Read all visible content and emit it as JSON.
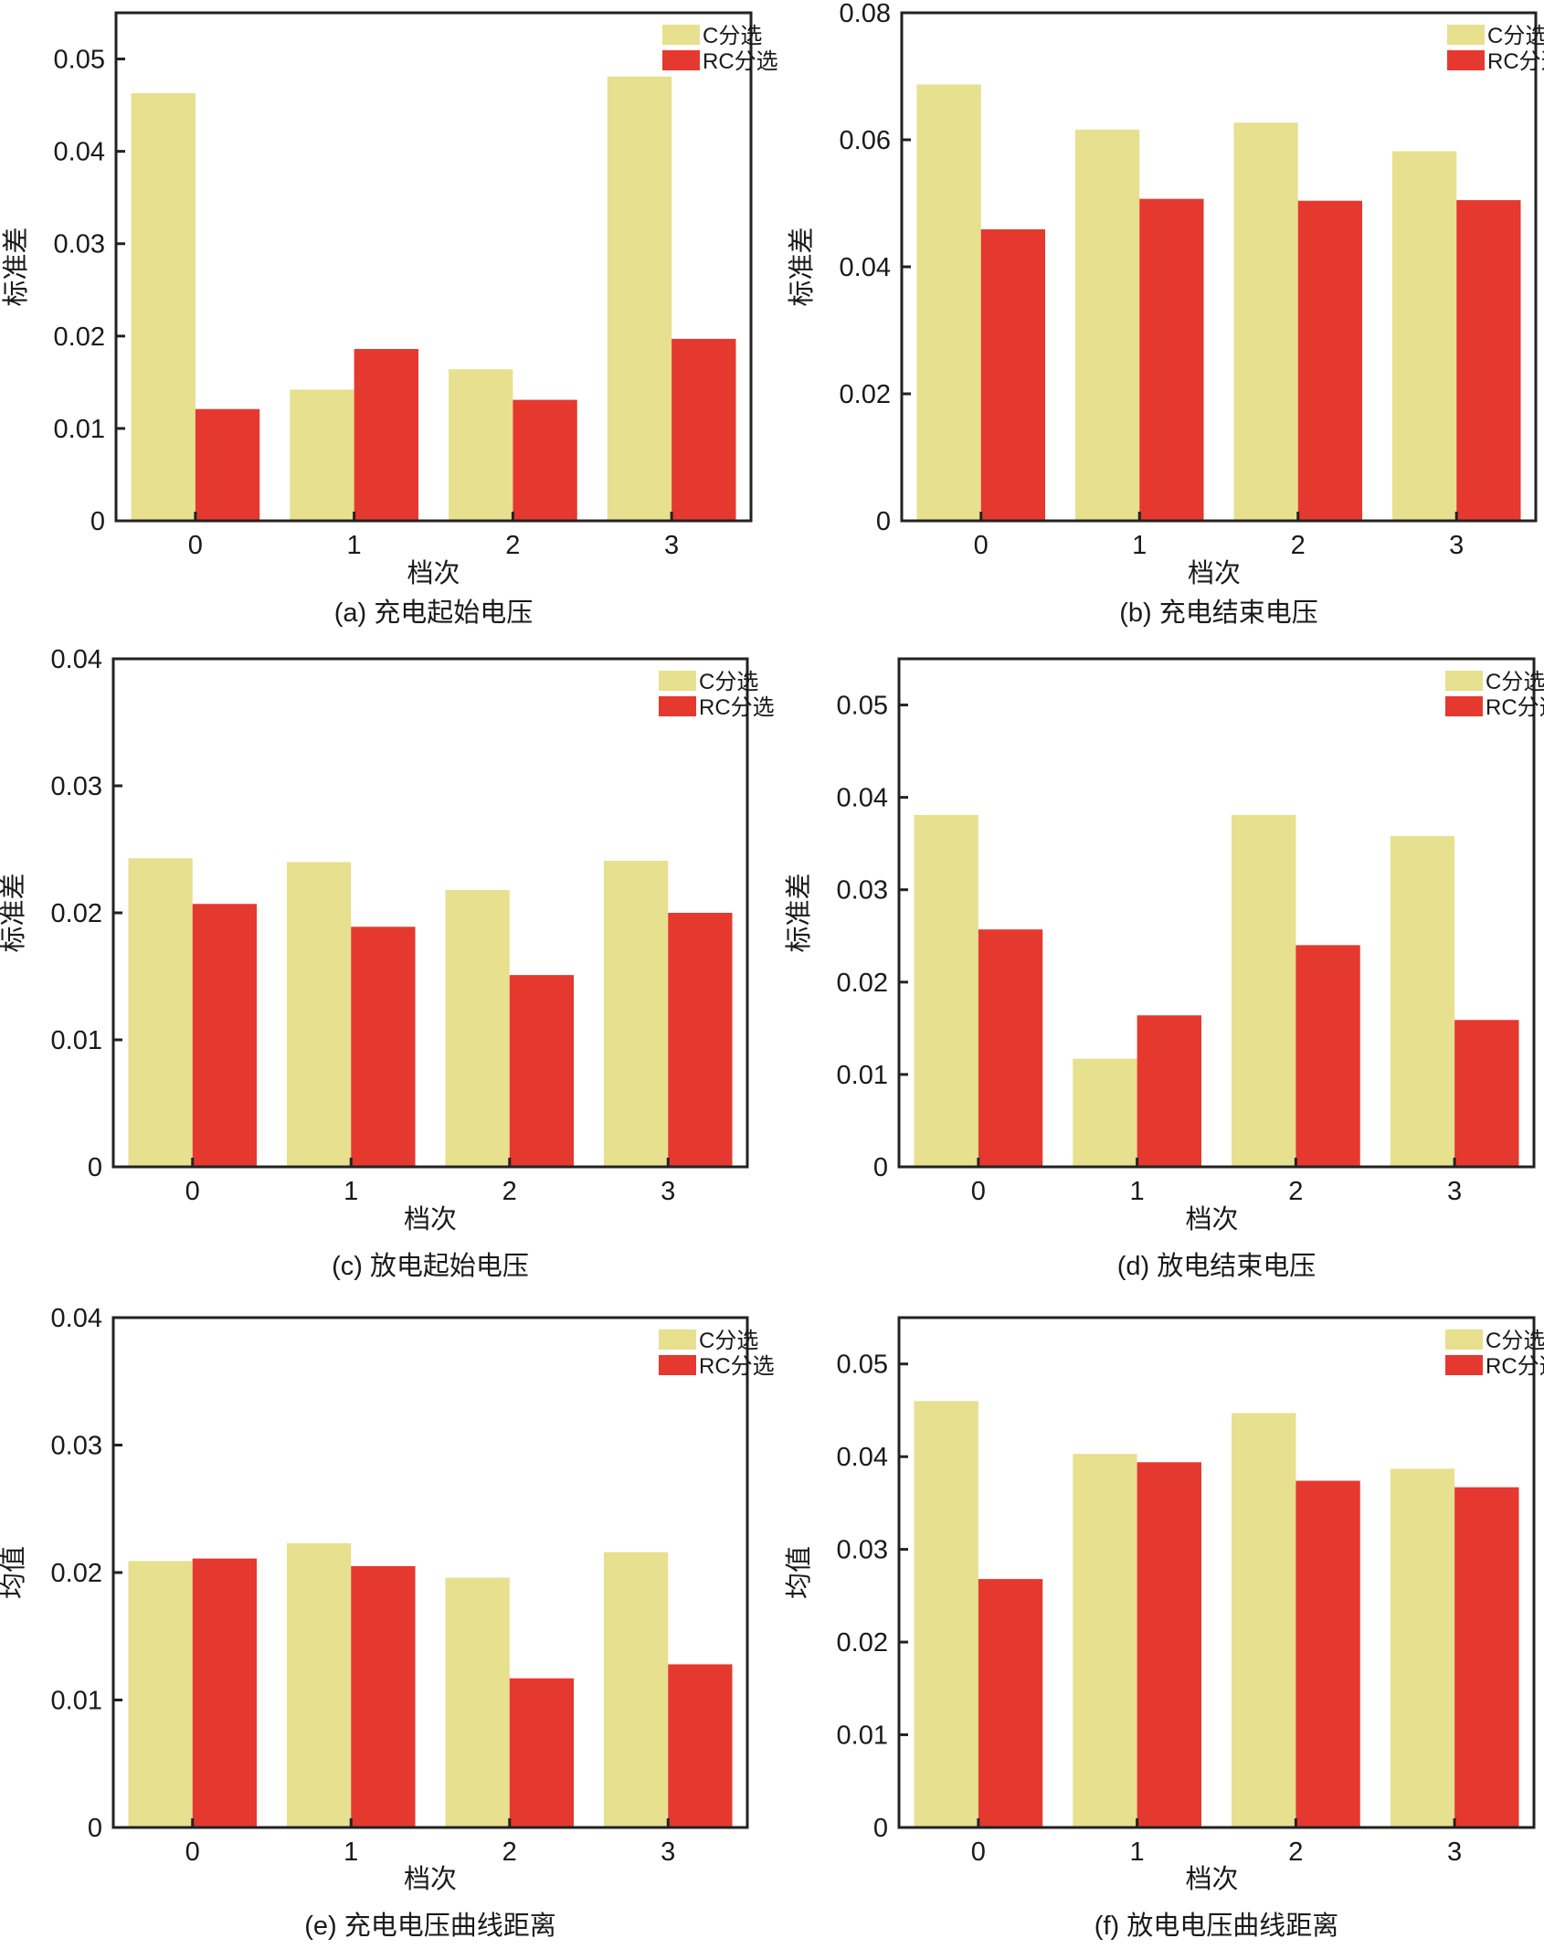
{
  "colors": {
    "C分选": "#e6e08f",
    "RC分选": "#e5392f",
    "axis": "#222222"
  },
  "chart_data": [
    {
      "type": "bar",
      "caption": "(a) 充电起始电压",
      "xlabel": "档次",
      "ylabel": "标准差",
      "categories": [
        "0",
        "1",
        "2",
        "3"
      ],
      "ylim": [
        0,
        0.055
      ],
      "yticks": [
        "0",
        "0.01",
        "0.02",
        "0.03",
        "0.04",
        "0.05"
      ],
      "ytick_values": [
        0,
        0.01,
        0.02,
        0.03,
        0.04,
        0.05
      ],
      "legend": "top-right",
      "grid": false,
      "series": [
        {
          "name": "C分选",
          "values": [
            0.0463,
            0.0142,
            0.0164,
            0.0481
          ]
        },
        {
          "name": "RC分选",
          "values": [
            0.0121,
            0.0186,
            0.0131,
            0.0197
          ]
        }
      ]
    },
    {
      "type": "bar",
      "caption": "(b) 充电结束电压",
      "xlabel": "档次",
      "ylabel": "标准差",
      "categories": [
        "0",
        "1",
        "2",
        "3"
      ],
      "ylim": [
        0,
        0.08
      ],
      "yticks": [
        "0",
        "0.02",
        "0.04",
        "0.06",
        "0.08"
      ],
      "ytick_values": [
        0,
        0.02,
        0.04,
        0.06,
        0.08
      ],
      "legend": "top-right",
      "grid": false,
      "series": [
        {
          "name": "C分选",
          "values": [
            0.0687,
            0.0616,
            0.0627,
            0.0582
          ]
        },
        {
          "name": "RC分选",
          "values": [
            0.0459,
            0.0507,
            0.0504,
            0.0505
          ]
        }
      ]
    },
    {
      "type": "bar",
      "caption": "(c) 放电起始电压",
      "xlabel": "档次",
      "ylabel": "标准差",
      "categories": [
        "0",
        "1",
        "2",
        "3"
      ],
      "ylim": [
        0,
        0.04
      ],
      "yticks": [
        "0",
        "0.01",
        "0.02",
        "0.03",
        "0.04"
      ],
      "ytick_values": [
        0,
        0.01,
        0.02,
        0.03,
        0.04
      ],
      "legend": "top-right",
      "grid": false,
      "series": [
        {
          "name": "C分选",
          "values": [
            0.0243,
            0.024,
            0.0218,
            0.0241
          ]
        },
        {
          "name": "RC分选",
          "values": [
            0.0207,
            0.0189,
            0.0151,
            0.02
          ]
        }
      ]
    },
    {
      "type": "bar",
      "caption": "(d) 放电结束电压",
      "xlabel": "档次",
      "ylabel": "标准差",
      "categories": [
        "0",
        "1",
        "2",
        "3"
      ],
      "ylim": [
        0,
        0.055
      ],
      "yticks": [
        "0",
        "0.01",
        "0.02",
        "0.03",
        "0.04",
        "0.05"
      ],
      "ytick_values": [
        0,
        0.01,
        0.02,
        0.03,
        0.04,
        0.05
      ],
      "legend": "top-right",
      "grid": false,
      "series": [
        {
          "name": "C分选",
          "values": [
            0.0381,
            0.0117,
            0.0381,
            0.0358
          ]
        },
        {
          "name": "RC分选",
          "values": [
            0.0257,
            0.0164,
            0.024,
            0.0159
          ]
        }
      ]
    },
    {
      "type": "bar",
      "caption": "(e) 充电电压曲线距离",
      "xlabel": "档次",
      "ylabel": "均值",
      "categories": [
        "0",
        "1",
        "2",
        "3"
      ],
      "ylim": [
        0,
        0.04
      ],
      "yticks": [
        "0",
        "0.01",
        "0.02",
        "0.03",
        "0.04"
      ],
      "ytick_values": [
        0,
        0.01,
        0.02,
        0.03,
        0.04
      ],
      "legend": "top-right",
      "grid": false,
      "series": [
        {
          "name": "C分选",
          "values": [
            0.0209,
            0.0223,
            0.0196,
            0.0216
          ]
        },
        {
          "name": "RC分选",
          "values": [
            0.0211,
            0.0205,
            0.0117,
            0.0128
          ]
        }
      ]
    },
    {
      "type": "bar",
      "caption": "(f) 放电电压曲线距离",
      "xlabel": "档次",
      "ylabel": "均值",
      "categories": [
        "0",
        "1",
        "2",
        "3"
      ],
      "ylim": [
        0,
        0.055
      ],
      "yticks": [
        "0",
        "0.01",
        "0.02",
        "0.03",
        "0.04",
        "0.05"
      ],
      "ytick_values": [
        0,
        0.01,
        0.02,
        0.03,
        0.04,
        0.05
      ],
      "legend": "top-right",
      "grid": false,
      "series": [
        {
          "name": "C分选",
          "values": [
            0.046,
            0.0403,
            0.0447,
            0.0387
          ]
        },
        {
          "name": "RC分选",
          "values": [
            0.0268,
            0.0394,
            0.0374,
            0.0367
          ]
        }
      ]
    }
  ]
}
